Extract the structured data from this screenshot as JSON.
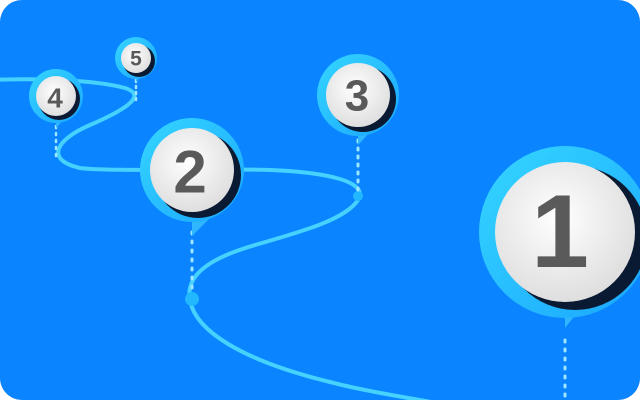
{
  "colors": {
    "background": "#0a84ff",
    "path": "#45d2ff",
    "ring": "#23c8ff",
    "badge": "#ececec",
    "digit": "#5a5a5a",
    "shadow": "#0b1a33"
  },
  "milestones": [
    {
      "label": "1"
    },
    {
      "label": "2"
    },
    {
      "label": "3"
    },
    {
      "label": "4"
    },
    {
      "label": "5"
    }
  ]
}
